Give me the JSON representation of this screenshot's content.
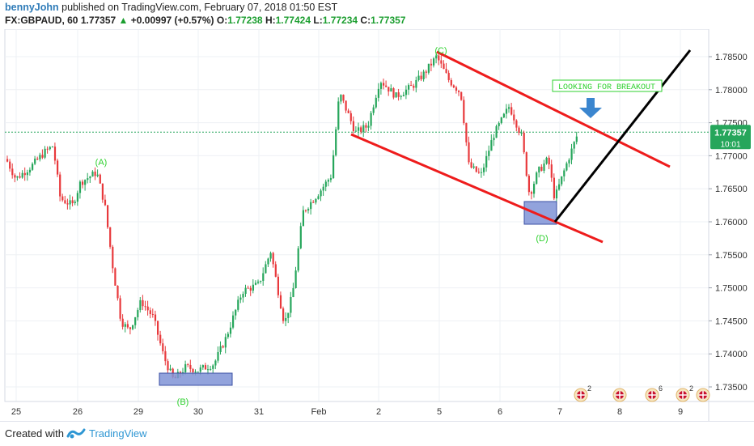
{
  "header": {
    "author": "bennyJohn",
    "published": "published on TradingView.com, February 07, 2018 01:50 EST",
    "symbol": "FX:GBPAUD, 60",
    "last": "1.77357",
    "change_arrow": "▲",
    "change": "+0.00997 (+0.57%)",
    "o_label": "O:",
    "o_val": "1.77238",
    "h_label": "H:",
    "h_val": "1.77424",
    "l_label": "L:",
    "l_val": "1.77234",
    "c_label": "C:",
    "c_val": "1.77357"
  },
  "footer": {
    "created_with": "Created with",
    "brand": "TradingView"
  },
  "colors": {
    "up": "#26a65b",
    "down": "#e8393c",
    "channel": "#ee1c1c",
    "trend": "#000000",
    "label_green": "#2fd12f",
    "box_fill": "#7f93d6",
    "arrow": "#3b86cf",
    "price_badge": "#26a65b"
  },
  "chart_data": {
    "type": "candlestick",
    "symbol": "FX:GBPAUD",
    "interval": "60",
    "ylim": [
      1.7345,
      1.7872
    ],
    "y_ticks": [
      "1.78500",
      "1.78000",
      "1.77500",
      "1.77000",
      "1.76500",
      "1.76000",
      "1.75500",
      "1.75000",
      "1.74500",
      "1.74000",
      "1.73500"
    ],
    "x_ticks": [
      "25",
      "26",
      "29",
      "30",
      "31",
      "Feb",
      "2",
      "5",
      "6",
      "7",
      "8",
      "9"
    ],
    "current_price": "1.77357",
    "countdown": "10:01",
    "annotations": {
      "A": "(A)",
      "B": "(B)",
      "C": "(C)",
      "D": "(D)",
      "breakout": "LOOKING FOR BREAKOUT"
    },
    "event_icons": [
      {
        "count": "2"
      },
      {
        "count": ""
      },
      {
        "count": "6"
      },
      {
        "count": "2"
      },
      {
        "count": ""
      }
    ]
  }
}
